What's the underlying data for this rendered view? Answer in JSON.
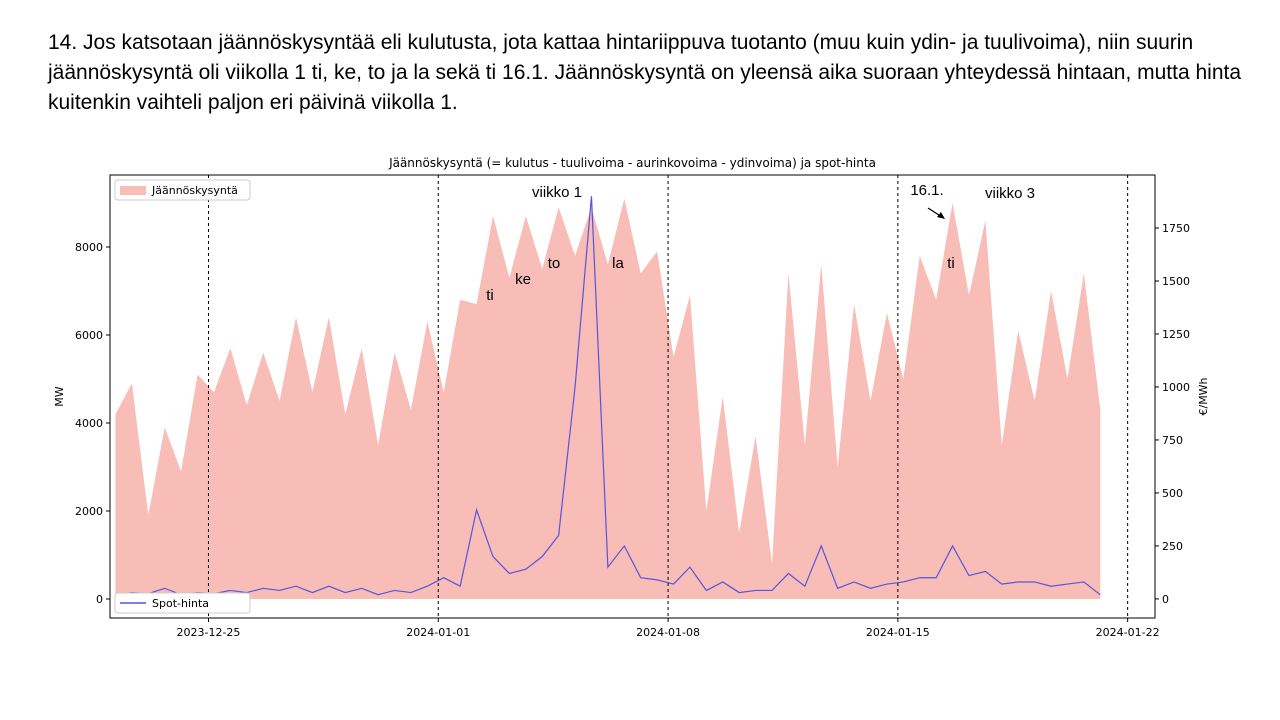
{
  "slide_text": "14. Jos katsotaan jäännöskysyntää eli kulutusta, jota kattaa hintariippuva tuotanto (muu kuin ydin- ja tuulivoima), niin suurin jäännöskysyntä oli viikolla 1 ti, ke, to ja la sekä ti 16.1. Jäännöskysyntä on yleensä aika suoraan yhteydessä hintaan, mutta hinta kuitenkin vaihteli paljon eri päivinä viikolla 1.",
  "chart_data": {
    "type": "area-line",
    "title": "Jäännöskysyntä (= kulutus - tuulivoima - aurinkovoima - ydinvoima) ja spot-hinta",
    "ylabel": "MW",
    "y2label": "€/MWh",
    "x": [
      "2023-12-22T04:00",
      "2023-12-22T16:00",
      "2023-12-23T04:00",
      "2023-12-23T16:00",
      "2023-12-24T04:00",
      "2023-12-24T16:00",
      "2023-12-25T04:00",
      "2023-12-25T16:00",
      "2023-12-26T04:00",
      "2023-12-26T16:00",
      "2023-12-27T04:00",
      "2023-12-27T16:00",
      "2023-12-28T04:00",
      "2023-12-28T16:00",
      "2023-12-29T04:00",
      "2023-12-29T16:00",
      "2023-12-30T04:00",
      "2023-12-30T16:00",
      "2023-12-31T04:00",
      "2023-12-31T16:00",
      "2024-01-01T04:00",
      "2024-01-01T16:00",
      "2024-01-02T04:00",
      "2024-01-02T16:00",
      "2024-01-03T04:00",
      "2024-01-03T16:00",
      "2024-01-04T04:00",
      "2024-01-04T16:00",
      "2024-01-05T04:00",
      "2024-01-05T16:00",
      "2024-01-06T04:00",
      "2024-01-06T16:00",
      "2024-01-07T04:00",
      "2024-01-07T16:00",
      "2024-01-08T04:00",
      "2024-01-08T16:00",
      "2024-01-09T04:00",
      "2024-01-09T16:00",
      "2024-01-10T04:00",
      "2024-01-10T16:00",
      "2024-01-11T04:00",
      "2024-01-11T16:00",
      "2024-01-12T04:00",
      "2024-01-12T16:00",
      "2024-01-13T04:00",
      "2024-01-13T16:00",
      "2024-01-14T04:00",
      "2024-01-14T16:00",
      "2024-01-15T04:00",
      "2024-01-15T16:00",
      "2024-01-16T04:00",
      "2024-01-16T16:00",
      "2024-01-17T04:00",
      "2024-01-17T16:00",
      "2024-01-18T04:00",
      "2024-01-18T16:00",
      "2024-01-19T04:00",
      "2024-01-19T16:00",
      "2024-01-20T04:00",
      "2024-01-20T16:00",
      "2024-01-21T04:00"
    ],
    "series": [
      {
        "name": "Jäännöskysyntä",
        "kind": "area",
        "color": "#f8bdb6",
        "values": [
          4200,
          4900,
          1900,
          3900,
          2900,
          5100,
          4700,
          5700,
          4400,
          5600,
          4500,
          6400,
          4700,
          6400,
          4200,
          5700,
          3500,
          5600,
          4300,
          6300,
          4700,
          6800,
          6700,
          8700,
          7300,
          8700,
          7500,
          8900,
          7800,
          8900,
          7600,
          9100,
          7400,
          7900,
          5500,
          6900,
          2000,
          4600,
          1500,
          3700,
          800,
          7400,
          3500,
          7600,
          3000,
          6700,
          4500,
          6500,
          5000,
          7800,
          6800,
          9000,
          6900,
          8600,
          3500,
          6100,
          4500,
          7000,
          5000,
          7400,
          4300
        ]
      },
      {
        "name": "Spot-hinta",
        "kind": "line",
        "axis": "y2",
        "color": "#5555dd",
        "values": [
          20,
          30,
          25,
          50,
          20,
          30,
          25,
          40,
          30,
          50,
          40,
          60,
          30,
          60,
          30,
          50,
          20,
          40,
          30,
          60,
          100,
          60,
          420,
          200,
          120,
          140,
          200,
          300,
          1000,
          1900,
          150,
          250,
          100,
          90,
          70,
          150,
          40,
          80,
          30,
          40,
          40,
          120,
          60,
          250,
          50,
          80,
          50,
          70,
          80,
          100,
          100,
          250,
          110,
          130,
          70,
          80,
          80,
          60,
          70,
          80,
          20
        ]
      }
    ],
    "xlim": [
      "2023-12-22T00:00",
      "2024-01-22T20:00"
    ],
    "xticks": [
      "2023-12-25",
      "2024-01-01",
      "2024-01-08",
      "2024-01-15",
      "2024-01-22"
    ],
    "xgrid": true,
    "ylim": [
      -432,
      9636
    ],
    "yticks": [
      0,
      2000,
      4000,
      6000,
      8000
    ],
    "y2lim": [
      -90,
      2000
    ],
    "y2ticks": [
      0,
      250,
      500,
      750,
      1000,
      1250,
      1500,
      1750
    ],
    "legend": [
      "upper left",
      "lower left"
    ],
    "annotations": [
      "viikko 1",
      "ti",
      "ke",
      "to",
      "la",
      "16.1.",
      "viikko 3",
      "ti"
    ]
  }
}
